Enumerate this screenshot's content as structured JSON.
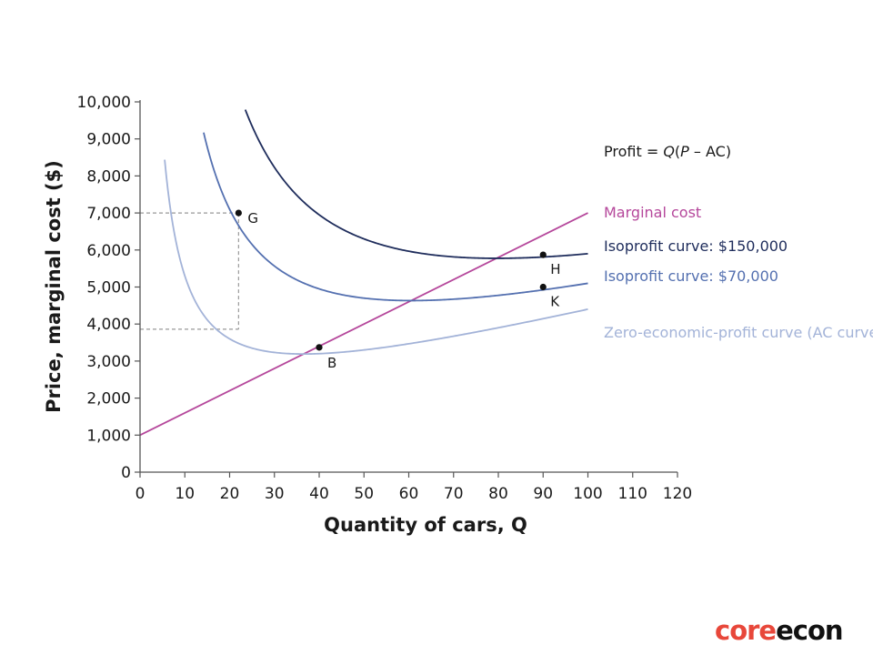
{
  "chart_data": {
    "type": "line",
    "xlabel": "Quantity of cars, Q",
    "ylabel": "Price, marginal cost ($)",
    "xlim": [
      0,
      120
    ],
    "ylim": [
      0,
      10000
    ],
    "x_ticks": [
      "0",
      "10",
      "20",
      "30",
      "40",
      "50",
      "60",
      "70",
      "80",
      "90",
      "100",
      "110",
      "120"
    ],
    "y_ticks": [
      "0",
      "1,000",
      "2,000",
      "3,000",
      "4,000",
      "5,000",
      "6,000",
      "7,000",
      "8,000",
      "9,000",
      "10,000"
    ],
    "formula": {
      "prefix": "Profit = ",
      "q": "Q",
      "open": "(",
      "p": "P",
      "rest": " – AC)"
    },
    "series": [
      {
        "name": "Marginal cost",
        "color": "#b5479b",
        "kind": "marginal_cost",
        "intercept": 1000,
        "slope": 60,
        "x_range": [
          0,
          100
        ]
      },
      {
        "name": "Isoprofit curve: $150,000",
        "color": "#1f2d5c",
        "kind": "isoprofit",
        "profit": 150000,
        "x_range": [
          23.5,
          100
        ]
      },
      {
        "name": "Isoprofit curve: $70,000",
        "color": "#5470b0",
        "kind": "isoprofit",
        "profit": 70000,
        "x_range": [
          14.2,
          100
        ]
      },
      {
        "name": "Zero-economic-profit curve (AC curve)",
        "color": "#a3b3d8",
        "kind": "isoprofit",
        "profit": 0,
        "x_range": [
          5.5,
          100
        ]
      }
    ],
    "points": [
      {
        "label": "G",
        "x": 22,
        "y": 7000
      },
      {
        "label": "B",
        "x": 40,
        "y": 3370
      },
      {
        "label": "H",
        "x": 90,
        "y": 5870
      },
      {
        "label": "K",
        "x": 90,
        "y": 5000
      }
    ],
    "guides": [
      {
        "from": "G",
        "x": 22,
        "y": 7000,
        "y_base": 3860
      }
    ]
  },
  "brand": {
    "part1": "core",
    "part2": "econ",
    "accent": "#e8473a"
  }
}
